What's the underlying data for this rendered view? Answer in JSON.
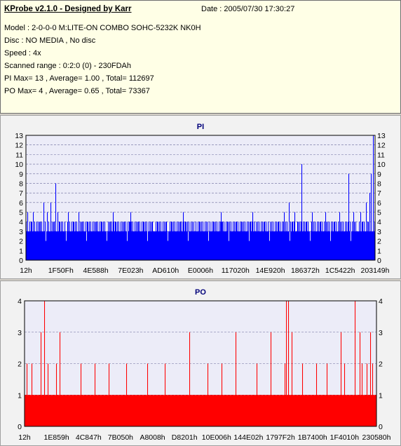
{
  "info": {
    "title": "KProbe v2.1.0 - Designed by Karr",
    "date": "Date : 2005/07/30 17:30:27",
    "lines": [
      "Model : 2-0-0-0 M:LITE-ON COMBO SOHC-5232K NK0H",
      "Disc : NO MEDIA , No disc",
      "Speed : 4x",
      "Scanned range : 0:2:0 (0) - 230FDAh",
      "PI Max= 13 , Average= 1.00 , Total= 112697",
      "PO Max= 4 , Average= 0.65 , Total= 73367"
    ]
  },
  "chart_data": [
    {
      "type": "bar",
      "title": "PI",
      "color": "#0000ff",
      "ylim": [
        0,
        13
      ],
      "yticks": [
        0,
        1,
        2,
        3,
        4,
        5,
        6,
        7,
        8,
        9,
        10,
        11,
        12,
        13
      ],
      "xlabels": [
        "12h",
        "1F50Fh",
        "4E588h",
        "7E023h",
        "AD610h",
        "E0006h",
        "117020h",
        "14E920h",
        "186372h",
        "1C5422h",
        "203149h"
      ],
      "base_pattern": [
        4,
        3,
        4,
        3,
        3,
        4,
        3,
        4,
        4,
        3,
        4,
        3,
        4,
        3,
        3,
        4,
        3,
        4,
        3,
        4
      ],
      "spikes": [
        {
          "x": 0.005,
          "v": 5
        },
        {
          "x": 0.02,
          "v": 5
        },
        {
          "x": 0.05,
          "v": 6
        },
        {
          "x": 0.06,
          "v": 5
        },
        {
          "x": 0.07,
          "v": 6
        },
        {
          "x": 0.085,
          "v": 8
        },
        {
          "x": 0.09,
          "v": 5
        },
        {
          "x": 0.12,
          "v": 5
        },
        {
          "x": 0.15,
          "v": 5
        },
        {
          "x": 0.25,
          "v": 5
        },
        {
          "x": 0.3,
          "v": 5
        },
        {
          "x": 0.45,
          "v": 5
        },
        {
          "x": 0.56,
          "v": 5
        },
        {
          "x": 0.65,
          "v": 5
        },
        {
          "x": 0.74,
          "v": 5
        },
        {
          "x": 0.755,
          "v": 6
        },
        {
          "x": 0.77,
          "v": 5
        },
        {
          "x": 0.79,
          "v": 10
        },
        {
          "x": 0.82,
          "v": 5
        },
        {
          "x": 0.86,
          "v": 5
        },
        {
          "x": 0.9,
          "v": 5
        },
        {
          "x": 0.925,
          "v": 9
        },
        {
          "x": 0.94,
          "v": 5
        },
        {
          "x": 0.96,
          "v": 5
        },
        {
          "x": 0.975,
          "v": 6
        },
        {
          "x": 0.985,
          "v": 7
        },
        {
          "x": 0.99,
          "v": 9
        },
        {
          "x": 0.995,
          "v": 13
        }
      ]
    },
    {
      "type": "bar",
      "title": "PO",
      "color": "#ff0000",
      "ylim": [
        0,
        4
      ],
      "yticks": [
        0,
        1,
        2,
        3,
        4
      ],
      "xlabels": [
        "12h",
        "1E859h",
        "4C847h",
        "7B050h",
        "A8008h",
        "D8201h",
        "10E006h",
        "144E02h",
        "1797F2h",
        "1B7400h",
        "1F4010h",
        "230580h"
      ],
      "base_value": 1,
      "spikes": [
        {
          "x": 0.005,
          "v": 2
        },
        {
          "x": 0.02,
          "v": 2
        },
        {
          "x": 0.045,
          "v": 3
        },
        {
          "x": 0.055,
          "v": 4
        },
        {
          "x": 0.065,
          "v": 2
        },
        {
          "x": 0.09,
          "v": 2
        },
        {
          "x": 0.1,
          "v": 3
        },
        {
          "x": 0.16,
          "v": 2
        },
        {
          "x": 0.2,
          "v": 2
        },
        {
          "x": 0.24,
          "v": 2
        },
        {
          "x": 0.29,
          "v": 2
        },
        {
          "x": 0.35,
          "v": 2
        },
        {
          "x": 0.4,
          "v": 2
        },
        {
          "x": 0.47,
          "v": 3
        },
        {
          "x": 0.52,
          "v": 2
        },
        {
          "x": 0.56,
          "v": 2
        },
        {
          "x": 0.6,
          "v": 3
        },
        {
          "x": 0.66,
          "v": 2
        },
        {
          "x": 0.7,
          "v": 3
        },
        {
          "x": 0.74,
          "v": 2
        },
        {
          "x": 0.76,
          "v": 3
        },
        {
          "x": 0.745,
          "v": 4
        },
        {
          "x": 0.75,
          "v": 4
        },
        {
          "x": 0.79,
          "v": 2
        },
        {
          "x": 0.83,
          "v": 2
        },
        {
          "x": 0.86,
          "v": 2
        },
        {
          "x": 0.9,
          "v": 3
        },
        {
          "x": 0.91,
          "v": 2
        },
        {
          "x": 0.94,
          "v": 4
        },
        {
          "x": 0.955,
          "v": 3
        },
        {
          "x": 0.96,
          "v": 2
        },
        {
          "x": 0.975,
          "v": 2
        },
        {
          "x": 0.985,
          "v": 3
        },
        {
          "x": 0.99,
          "v": 2
        }
      ]
    }
  ]
}
